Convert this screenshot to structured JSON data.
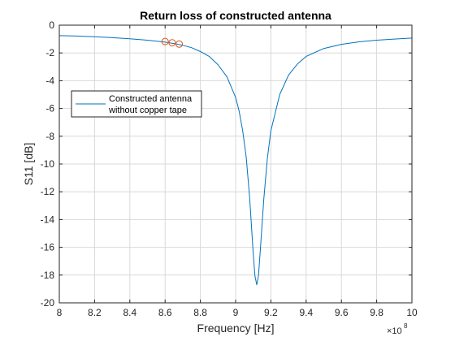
{
  "chart_data": {
    "type": "line",
    "title": "Return loss of constructed antenna",
    "xlabel": "Frequency [Hz]",
    "ylabel": "S11 [dB]",
    "x_exponent_base": "×10",
    "x_exponent_power": "8",
    "xlim": [
      8,
      10
    ],
    "ylim": [
      -20,
      0
    ],
    "x_ticks": [
      "8",
      "8.2",
      "8.4",
      "8.6",
      "8.8",
      "9",
      "9.2",
      "9.4",
      "9.6",
      "9.8",
      "10"
    ],
    "y_ticks": [
      "0",
      "-2",
      "-4",
      "-6",
      "-8",
      "-10",
      "-12",
      "-14",
      "-16",
      "-18",
      "-20"
    ],
    "grid": true,
    "legend_position": "upper-left",
    "series": [
      {
        "name": "Constructed antenna without copper tape",
        "legend_lines": [
          "Constructed antenna",
          "without copper tape"
        ],
        "color": "#0072BD",
        "x": [
          8.0,
          8.1,
          8.2,
          8.3,
          8.4,
          8.5,
          8.6,
          8.65,
          8.7,
          8.75,
          8.8,
          8.85,
          8.9,
          8.95,
          9.0,
          9.02,
          9.04,
          9.06,
          9.08,
          9.1,
          9.11,
          9.12,
          9.13,
          9.14,
          9.16,
          9.18,
          9.2,
          9.25,
          9.3,
          9.35,
          9.4,
          9.5,
          9.6,
          9.7,
          9.8,
          9.9,
          10.0
        ],
        "y": [
          -0.75,
          -0.78,
          -0.83,
          -0.9,
          -0.98,
          -1.08,
          -1.22,
          -1.32,
          -1.45,
          -1.62,
          -1.9,
          -2.25,
          -2.85,
          -3.7,
          -5.2,
          -6.2,
          -7.6,
          -9.5,
          -12.5,
          -16.5,
          -18.1,
          -18.7,
          -18.0,
          -16.2,
          -12.5,
          -9.6,
          -7.6,
          -5.0,
          -3.6,
          -2.8,
          -2.25,
          -1.68,
          -1.38,
          -1.2,
          -1.08,
          -1.0,
          -0.93
        ]
      }
    ],
    "markers": {
      "color": "#D95319",
      "shape": "circle",
      "x": [
        8.6,
        8.64,
        8.68
      ],
      "y": [
        -1.18,
        -1.27,
        -1.36
      ]
    }
  }
}
